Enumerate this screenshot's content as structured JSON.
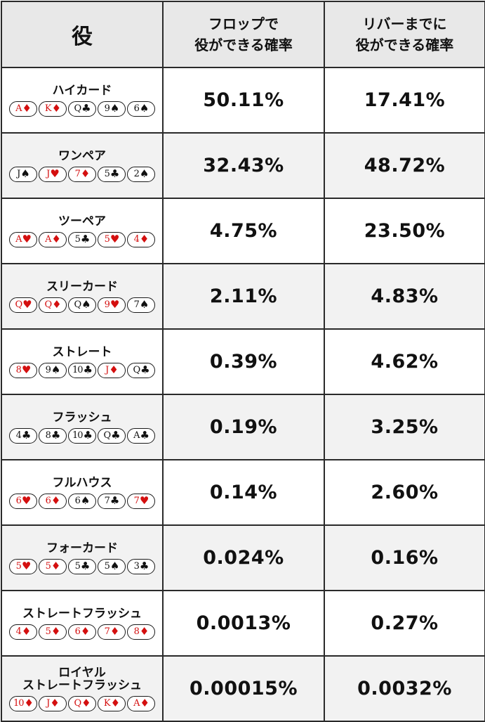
{
  "header": {
    "hand": "役",
    "flop": "フロップで\n役ができる確率",
    "river": "リバーまでに\n役ができる確率"
  },
  "rows": [
    {
      "name": "ハイカード",
      "flop": "50.11%",
      "river": "17.41%",
      "cards": [
        {
          "rank": "A",
          "suit": "♦",
          "color": "red"
        },
        {
          "rank": "K",
          "suit": "♦",
          "color": "red"
        },
        {
          "rank": "Q",
          "suit": "♣",
          "color": "black"
        },
        {
          "rank": "9",
          "suit": "♠",
          "color": "black"
        },
        {
          "rank": "6",
          "suit": "♠",
          "color": "black"
        }
      ]
    },
    {
      "name": "ワンペア",
      "flop": "32.43%",
      "river": "48.72%",
      "cards": [
        {
          "rank": "J",
          "suit": "♠",
          "color": "black"
        },
        {
          "rank": "J",
          "suit": "♥",
          "color": "red"
        },
        {
          "rank": "7",
          "suit": "♦",
          "color": "red"
        },
        {
          "rank": "5",
          "suit": "♣",
          "color": "black"
        },
        {
          "rank": "2",
          "suit": "♠",
          "color": "black"
        }
      ]
    },
    {
      "name": "ツーペア",
      "flop": "4.75%",
      "river": "23.50%",
      "cards": [
        {
          "rank": "A",
          "suit": "♥",
          "color": "red"
        },
        {
          "rank": "A",
          "suit": "♦",
          "color": "red"
        },
        {
          "rank": "5",
          "suit": "♣",
          "color": "black"
        },
        {
          "rank": "5",
          "suit": "♥",
          "color": "red"
        },
        {
          "rank": "4",
          "suit": "♦",
          "color": "red"
        }
      ]
    },
    {
      "name": "スリーカード",
      "flop": "2.11%",
      "river": "4.83%",
      "cards": [
        {
          "rank": "Q",
          "suit": "♥",
          "color": "red"
        },
        {
          "rank": "Q",
          "suit": "♦",
          "color": "red"
        },
        {
          "rank": "Q",
          "suit": "♠",
          "color": "black"
        },
        {
          "rank": "9",
          "suit": "♥",
          "color": "red"
        },
        {
          "rank": "7",
          "suit": "♠",
          "color": "black"
        }
      ]
    },
    {
      "name": "ストレート",
      "flop": "0.39%",
      "river": "4.62%",
      "cards": [
        {
          "rank": "8",
          "suit": "♥",
          "color": "red"
        },
        {
          "rank": "9",
          "suit": "♠",
          "color": "black"
        },
        {
          "rank": "10",
          "suit": "♣",
          "color": "black"
        },
        {
          "rank": "J",
          "suit": "♦",
          "color": "red"
        },
        {
          "rank": "Q",
          "suit": "♣",
          "color": "black"
        }
      ]
    },
    {
      "name": "フラッシュ",
      "flop": "0.19%",
      "river": "3.25%",
      "cards": [
        {
          "rank": "4",
          "suit": "♣",
          "color": "black"
        },
        {
          "rank": "8",
          "suit": "♣",
          "color": "black"
        },
        {
          "rank": "10",
          "suit": "♣",
          "color": "black"
        },
        {
          "rank": "Q",
          "suit": "♣",
          "color": "black"
        },
        {
          "rank": "A",
          "suit": "♣",
          "color": "black"
        }
      ]
    },
    {
      "name": "フルハウス",
      "flop": "0.14%",
      "river": "2.60%",
      "cards": [
        {
          "rank": "6",
          "suit": "♥",
          "color": "red"
        },
        {
          "rank": "6",
          "suit": "♦",
          "color": "red"
        },
        {
          "rank": "6",
          "suit": "♠",
          "color": "black"
        },
        {
          "rank": "7",
          "suit": "♣",
          "color": "black"
        },
        {
          "rank": "7",
          "suit": "♥",
          "color": "red"
        }
      ]
    },
    {
      "name": "フォーカード",
      "flop": "0.024%",
      "river": "0.16%",
      "cards": [
        {
          "rank": "5",
          "suit": "♥",
          "color": "red"
        },
        {
          "rank": "5",
          "suit": "♦",
          "color": "red"
        },
        {
          "rank": "5",
          "suit": "♣",
          "color": "black"
        },
        {
          "rank": "5",
          "suit": "♠",
          "color": "black"
        },
        {
          "rank": "3",
          "suit": "♣",
          "color": "black"
        }
      ]
    },
    {
      "name": "ストレートフラッシュ",
      "flop": "0.0013%",
      "river": "0.27%",
      "cards": [
        {
          "rank": "4",
          "suit": "♦",
          "color": "red"
        },
        {
          "rank": "5",
          "suit": "♦",
          "color": "red"
        },
        {
          "rank": "6",
          "suit": "♦",
          "color": "red"
        },
        {
          "rank": "7",
          "suit": "♦",
          "color": "red"
        },
        {
          "rank": "8",
          "suit": "♦",
          "color": "red"
        }
      ]
    },
    {
      "name": "ロイヤル\nストレートフラッシュ",
      "flop": "0.00015%",
      "river": "0.0032%",
      "cards": [
        {
          "rank": "10",
          "suit": "♦",
          "color": "red"
        },
        {
          "rank": "J",
          "suit": "♦",
          "color": "red"
        },
        {
          "rank": "Q",
          "suit": "♦",
          "color": "red"
        },
        {
          "rank": "K",
          "suit": "♦",
          "color": "red"
        },
        {
          "rank": "A",
          "suit": "♦",
          "color": "red"
        }
      ]
    }
  ]
}
